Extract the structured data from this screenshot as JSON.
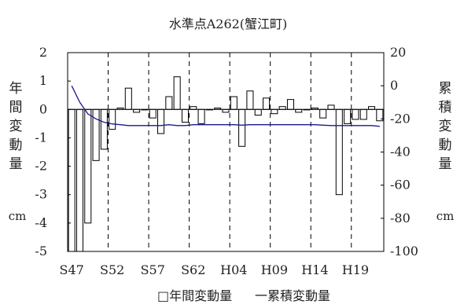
{
  "chart_data": {
    "type": "bar",
    "title": "水準点A262(蟹江町)",
    "y_left": {
      "label": "年間変動量",
      "unit": "cm",
      "range": [
        -5,
        2
      ],
      "ticks": [
        "2",
        "1",
        "0",
        "-1",
        "-2",
        "-3",
        "-4",
        "-5"
      ]
    },
    "y_right": {
      "label": "累積変動量",
      "unit": "cm",
      "range": [
        -100,
        20
      ],
      "ticks": [
        "20",
        "0",
        "-20",
        "-40",
        "-60",
        "-80",
        "-100"
      ]
    },
    "x_tick_labels": [
      "S47",
      "S52",
      "S57",
      "S62",
      "H04",
      "H09",
      "H14",
      "H19"
    ],
    "grid": "vertical dashed lines every 5 years",
    "legend": [
      "□年間変動量",
      "一累積変動量"
    ],
    "legend_position": "bottom",
    "series": [
      {
        "name": "年間変動量",
        "kind": "bar",
        "values": [
          -5.3,
          -5.3,
          -4.0,
          -1.8,
          -1.4,
          -0.7,
          0.05,
          0.75,
          -0.1,
          0.0,
          -0.3,
          -0.85,
          0.45,
          1.15,
          -0.45,
          0.1,
          -0.5,
          0.0,
          0.05,
          -0.1,
          0.45,
          -1.3,
          0.65,
          -0.2,
          0.4,
          -0.15,
          0.1,
          0.35,
          -0.1,
          0.0,
          0.05,
          -0.3,
          0.15,
          -3.0,
          -0.5,
          -0.35,
          -0.35,
          0.1,
          -0.4
        ]
      },
      {
        "name": "累積変動量",
        "kind": "line",
        "color": "#1a1a8c",
        "values": [
          0,
          -10,
          -17,
          -20,
          -22,
          -23,
          -23.5,
          -24,
          -24,
          -24,
          -24,
          -24,
          -23.5,
          -24,
          -24,
          -23.5,
          -23.5,
          -23.5,
          -23.5,
          -23.5,
          -23.5,
          -23.8,
          -23.5,
          -23.5,
          -23.5,
          -23.5,
          -23.5,
          -23.5,
          -23.5,
          -23.5,
          -23.5,
          -23.8,
          -24,
          -24,
          -24,
          -24,
          -24,
          -24,
          -24.5
        ]
      }
    ]
  }
}
